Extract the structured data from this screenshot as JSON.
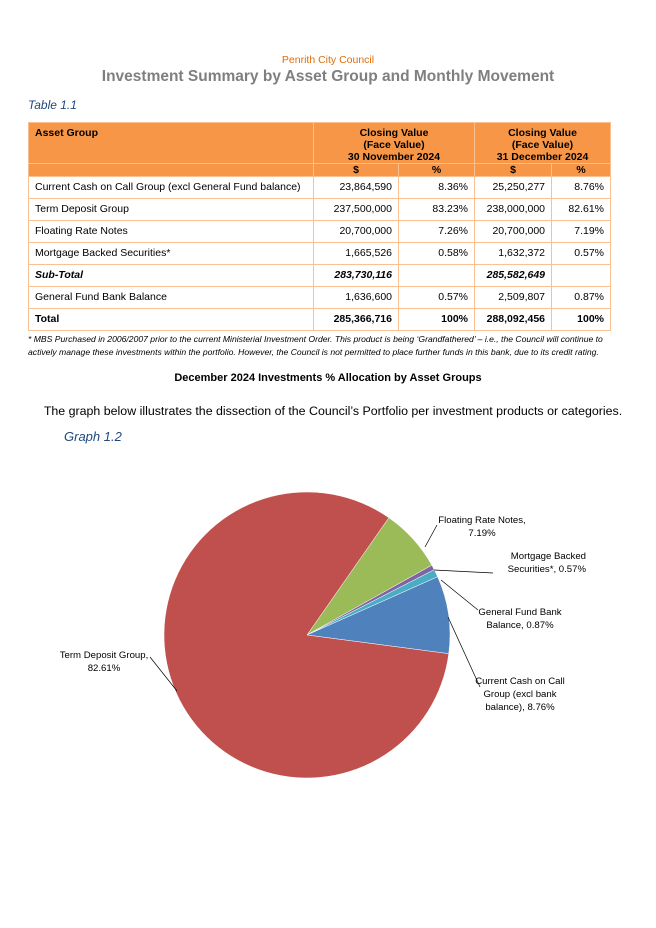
{
  "header": {
    "organisation": "Penrith City Council",
    "title": "Investment Summary by Asset Group and Monthly Movement"
  },
  "table": {
    "caption": "Table 1.1",
    "headers": {
      "asset_group": "Asset Group",
      "nov": "Closing Value (Face Value) 30 November 2024",
      "nov_lines": [
        "Closing Value",
        "(Face Value)",
        "30 November 2024"
      ],
      "dec_lines": [
        "Closing Value",
        "(Face Value)",
        "31 December 2024"
      ],
      "dollar": "$",
      "percent": "%"
    },
    "rows": [
      {
        "group": "Current Cash on Call Group (excl General Fund balance)",
        "nov_value": "23,864,590",
        "nov_pct": "8.36%",
        "dec_value": "25,250,277",
        "dec_pct": "8.76%"
      },
      {
        "group": "Term Deposit Group",
        "nov_value": "237,500,000",
        "nov_pct": "83.23%",
        "dec_value": "238,000,000",
        "dec_pct": "82.61%"
      },
      {
        "group": "Floating Rate Notes",
        "nov_value": "20,700,000",
        "nov_pct": "7.26%",
        "dec_value": "20,700,000",
        "dec_pct": "7.19%"
      },
      {
        "group": "Mortgage Backed Securities*",
        "nov_value": "1,665,526",
        "nov_pct": "0.58%",
        "dec_value": "1,632,372",
        "dec_pct": "0.57%"
      },
      {
        "group": "Sub-Total",
        "nov_value": "283,730,116",
        "nov_pct": "",
        "dec_value": "285,582,649",
        "dec_pct": ""
      },
      {
        "group": "General Fund Bank Balance",
        "nov_value": "1,636,600",
        "nov_pct": "0.57%",
        "dec_value": "2,509,807",
        "dec_pct": "0.87%"
      },
      {
        "group": "Total",
        "nov_value": "285,366,716",
        "nov_pct": "100%",
        "dec_value": "288,092,456",
        "dec_pct": "100%"
      }
    ],
    "footnote": "* MBS Purchased in 2006/2007 prior to the current Ministerial Investment Order. This product is being ‘Grandfathered’ – i.e., the Council will continue to actively manage these investments within the portfolio. However, the Council is not permitted to place further funds in this bank, due to its credit rating."
  },
  "graph": {
    "heading": "December 2024 Investments % Allocation by Asset Groups",
    "description": "The graph below illustrates the dissection of the Council’s Portfolio per investment products or categories.",
    "caption": "Graph 1.2"
  },
  "chart_data": {
    "type": "pie",
    "title": "",
    "slices": [
      {
        "name": "Floating Rate Notes",
        "value": 7.19,
        "label_lines": [
          "Floating Rate Notes,",
          "7.19%"
        ],
        "color": "#9BBB59"
      },
      {
        "name": "Mortgage Backed Securities*",
        "value": 0.57,
        "label_lines": [
          "Mortgage Backed",
          "Securities*, 0.57%"
        ],
        "color": "#8064A2"
      },
      {
        "name": "General Fund Bank Balance",
        "value": 0.87,
        "label_lines": [
          "General Fund Bank",
          "Balance, 0.87%"
        ],
        "color": "#4BACC6"
      },
      {
        "name": "Current Cash on Call Group (excl bank balance)",
        "value": 8.76,
        "label_lines": [
          "Current Cash on Call",
          "Group (excl bank",
          "balance), 8.76%"
        ],
        "color": "#4F81BD"
      },
      {
        "name": "Term Deposit Group",
        "value": 82.61,
        "label_lines": [
          "Term Deposit Group,",
          "82.61%"
        ],
        "color": "#C0504D"
      }
    ],
    "legend": "none (data labels with leader lines)"
  }
}
